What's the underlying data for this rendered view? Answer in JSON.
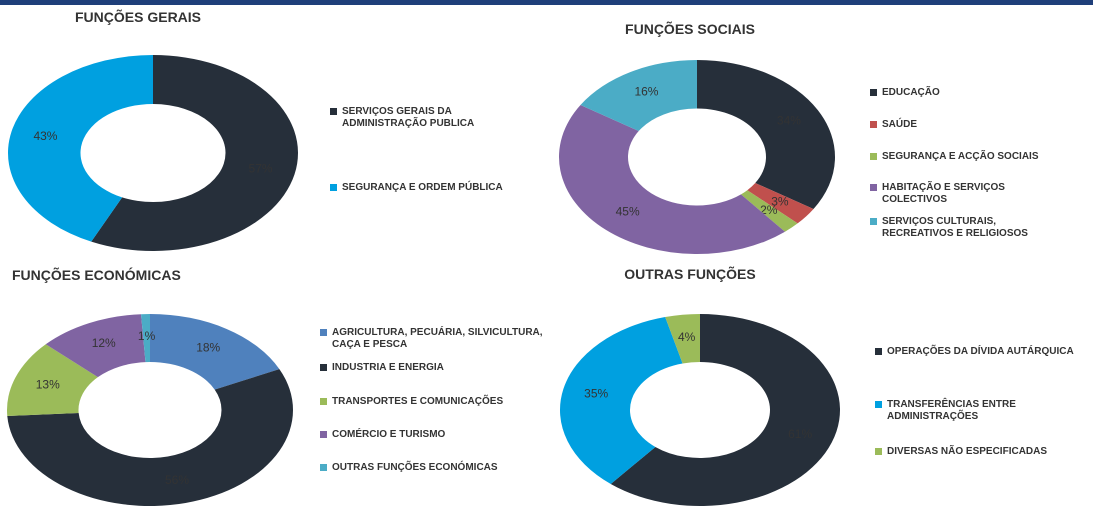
{
  "chart_data": [
    {
      "type": "pie",
      "title": "FUNÇÕES GERAIS",
      "categories": [
        "SERVIÇOS GERAIS DA ADMINISTRAÇÃO PUBLICA",
        "SEGURANÇA E ORDEM PÚBLICA"
      ],
      "values": [
        57,
        43
      ],
      "value_labels": [
        "57%",
        "43%"
      ],
      "colors": [
        "#262f3a",
        "#00a0e0"
      ]
    },
    {
      "type": "pie",
      "title": "FUNÇÕES SOCIAIS",
      "categories": [
        "EDUCAÇÃO",
        "SAÚDE",
        "SEGURANÇA E ACÇÃO SOCIAIS",
        "HABITAÇÃO E SERVIÇOS COLECTIVOS",
        "SERVIÇOS CULTURAIS, RECREATIVOS E RELIGIOSOS"
      ],
      "values": [
        34,
        3,
        2,
        45,
        16
      ],
      "value_labels": [
        "34%",
        "3%",
        "2%",
        "45%",
        "16%"
      ],
      "colors": [
        "#262f3a",
        "#c0504d",
        "#9bbb59",
        "#8064a2",
        "#4bacc6"
      ]
    },
    {
      "type": "pie",
      "title": "FUNÇÕES ECONÓMICAS",
      "categories": [
        "AGRICULTURA, PECUÁRIA, SILVICULTURA, CAÇA E PESCA",
        "INDUSTRIA E ENERGIA",
        "TRANSPORTES E COMUNICAÇÕES",
        "COMÉRCIO E TURISMO",
        "OUTRAS FUNÇÕES ECONÓMICAS"
      ],
      "values": [
        18,
        56,
        13,
        12,
        1
      ],
      "value_labels": [
        "18%",
        "56%",
        "13%",
        "12%",
        "1%"
      ],
      "colors": [
        "#4f81bd",
        "#262f3a",
        "#9bbb59",
        "#8064a2",
        "#4bacc6"
      ]
    },
    {
      "type": "pie",
      "title": "OUTRAS FUNÇÕES",
      "categories": [
        "OPERAÇÕES DA DÍVIDA AUTÁRQUICA",
        "TRANSFERÊNCIAS ENTRE ADMINISTRAÇÕES",
        "DIVERSAS NÃO ESPECIFICADAS"
      ],
      "values": [
        61,
        35,
        4
      ],
      "value_labels": [
        "61%",
        "35%",
        "4%"
      ],
      "colors": [
        "#262f3a",
        "#00a0e0",
        "#9bbb59"
      ]
    }
  ]
}
